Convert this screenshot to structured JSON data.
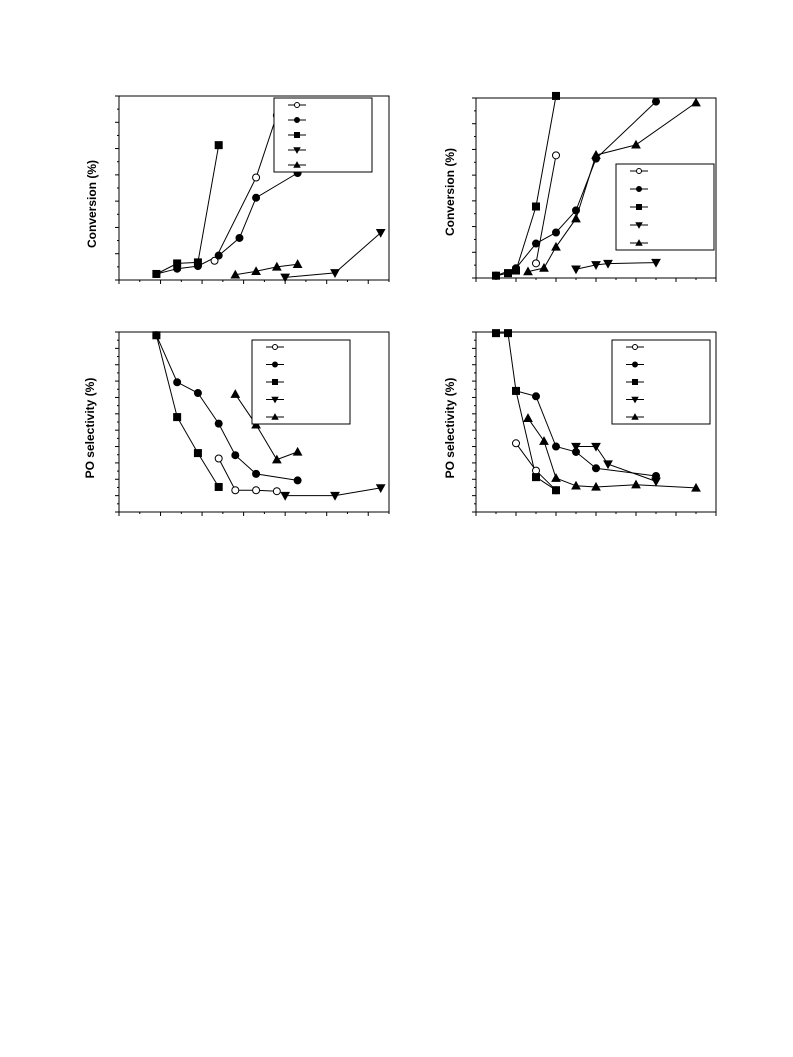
{
  "chart_data": [
    {
      "id": "top-left",
      "type": "scatter",
      "ylabel": "Conversion (%)",
      "xlim": [
        0,
        13
      ],
      "ylim": [
        0,
        7
      ],
      "legend_position": "top-right",
      "series": [
        {
          "marker": "open-circle",
          "x": [
            4.6,
            6.6,
            7.6
          ],
          "y": [
            0.73,
            3.9,
            6.27
          ]
        },
        {
          "marker": "filled-circle",
          "x": [
            1.8,
            2.8,
            3.8,
            4.8,
            5.8,
            6.6,
            8.6
          ],
          "y": [
            0.23,
            0.43,
            0.53,
            0.93,
            1.6,
            3.13,
            4.07
          ]
        },
        {
          "marker": "filled-square",
          "x": [
            1.8,
            2.8,
            3.8,
            4.8
          ],
          "y": [
            0.23,
            0.63,
            0.67,
            5.13
          ]
        },
        {
          "marker": "filled-triangle-down",
          "x": [
            8.0,
            10.4,
            12.6
          ],
          "y": [
            0.1,
            0.27,
            1.8
          ]
        },
        {
          "marker": "filled-triangle-up",
          "x": [
            5.6,
            6.6,
            7.6,
            8.6
          ],
          "y": [
            0.2,
            0.33,
            0.5,
            0.6
          ]
        }
      ]
    },
    {
      "id": "top-right",
      "type": "scatter",
      "ylabel": "Conversion (%)",
      "xlim": [
        0,
        12
      ],
      "ylim": [
        0,
        7
      ],
      "legend_position": "center-right",
      "series": [
        {
          "marker": "open-circle",
          "x": [
            3.0,
            4.0
          ],
          "y": [
            0.57,
            4.77
          ]
        },
        {
          "marker": "filled-circle",
          "x": [
            1.0,
            2.0,
            3.0,
            4.0,
            5.0,
            6.0,
            9.0
          ],
          "y": [
            0.09,
            0.38,
            1.34,
            1.77,
            2.63,
            4.64,
            6.86
          ]
        },
        {
          "marker": "filled-square",
          "x": [
            1.0,
            1.6,
            2.0,
            3.0,
            4.0
          ],
          "y": [
            0.09,
            0.19,
            0.29,
            2.78,
            7.08
          ]
        },
        {
          "marker": "filled-triangle-down",
          "x": [
            5.0,
            6.0,
            6.6,
            9.0
          ],
          "y": [
            0.34,
            0.51,
            0.56,
            0.6
          ]
        },
        {
          "marker": "filled-triangle-up",
          "x": [
            2.6,
            3.4,
            4.0,
            5.0,
            6.0,
            8.0,
            11.0
          ],
          "y": [
            0.25,
            0.39,
            1.21,
            2.31,
            4.78,
            5.18,
            6.82
          ]
        }
      ]
    },
    {
      "id": "bottom-left",
      "type": "scatter",
      "ylabel": "PO selectivity (%)",
      "xlim": [
        0,
        13
      ],
      "ylim": [
        0,
        11
      ],
      "legend_position": "top-right",
      "series": [
        {
          "marker": "open-circle",
          "x": [
            4.8,
            5.6,
            6.6,
            7.6
          ],
          "y": [
            3.27,
            1.33,
            1.33,
            1.27
          ]
        },
        {
          "marker": "filled-circle",
          "x": [
            1.8,
            2.8,
            3.8,
            4.8,
            5.6,
            6.6,
            8.6
          ],
          "y": [
            10.8,
            7.93,
            7.27,
            5.4,
            3.47,
            2.33,
            1.93
          ]
        },
        {
          "marker": "filled-square",
          "x": [
            1.8,
            2.8,
            3.8,
            4.8
          ],
          "y": [
            10.8,
            5.8,
            3.6,
            1.53
          ]
        },
        {
          "marker": "filled-triangle-down",
          "x": [
            8.0,
            10.4,
            12.6
          ],
          "y": [
            1.0,
            1.0,
            1.47
          ]
        },
        {
          "marker": "filled-triangle-up",
          "x": [
            5.6,
            6.6,
            7.6,
            8.6
          ],
          "y": [
            7.2,
            5.33,
            3.2,
            3.67
          ]
        }
      ]
    },
    {
      "id": "bottom-right",
      "type": "scatter",
      "ylabel": "PO selectivity (%)",
      "xlim": [
        0,
        12
      ],
      "ylim": [
        0,
        11
      ],
      "legend_position": "top-right",
      "series": [
        {
          "marker": "open-circle",
          "x": [
            2.0,
            3.0,
            4.0
          ],
          "y": [
            4.2,
            2.53,
            1.33
          ]
        },
        {
          "marker": "filled-circle",
          "x": [
            2.0,
            3.0,
            4.0,
            5.0,
            6.0,
            9.0
          ],
          "y": [
            7.4,
            7.07,
            4.0,
            3.67,
            2.67,
            2.2
          ]
        },
        {
          "marker": "filled-square",
          "x": [
            1.0,
            1.6,
            2.0,
            3.0,
            4.0
          ],
          "y": [
            10.93,
            10.93,
            7.4,
            2.13,
            1.33
          ]
        },
        {
          "marker": "filled-triangle-down",
          "x": [
            5.0,
            6.0,
            6.6,
            9.0
          ],
          "y": [
            4.0,
            4.0,
            2.93,
            1.87
          ]
        },
        {
          "marker": "filled-triangle-up",
          "x": [
            2.6,
            3.4,
            4.0,
            5.0,
            6.0,
            8.0,
            11.0
          ],
          "y": [
            5.73,
            4.33,
            2.07,
            1.6,
            1.53,
            1.67,
            1.47
          ]
        }
      ]
    }
  ]
}
